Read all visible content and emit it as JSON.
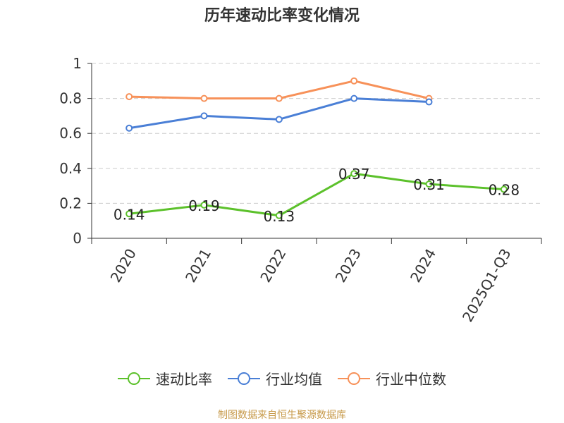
{
  "title": "历年速动比率变化情况",
  "footer": "制图数据来自恒生聚源数据库",
  "chart_data": {
    "type": "line",
    "title": "历年速动比率变化情况",
    "categories": [
      "2020",
      "2021",
      "2022",
      "2023",
      "2024",
      "2025Q1-Q3"
    ],
    "ylim": [
      0,
      1
    ],
    "yticks": [
      "0",
      "0.2",
      "0.4",
      "0.6",
      "0.8",
      "1"
    ],
    "grid": true,
    "legend_position": "bottom",
    "series": [
      {
        "name": "速动比率",
        "color": "#5cc12b",
        "values": [
          0.14,
          0.19,
          0.13,
          0.37,
          0.31,
          0.28
        ],
        "labels": [
          "0.14",
          "0.19",
          "0.13",
          "0.37",
          "0.31",
          "0.28"
        ]
      },
      {
        "name": "行业均值",
        "color": "#4a7fd6",
        "values": [
          0.63,
          0.7,
          0.68,
          0.8,
          0.78,
          null
        ]
      },
      {
        "name": "行业中位数",
        "color": "#f79159",
        "values": [
          0.81,
          0.8,
          0.8,
          0.9,
          0.8,
          null
        ]
      }
    ]
  }
}
